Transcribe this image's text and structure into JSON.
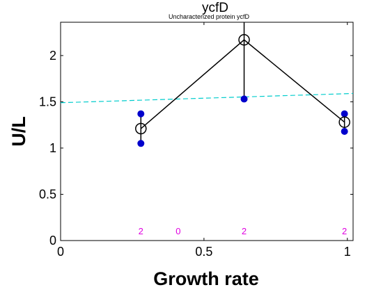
{
  "chart_data": {
    "type": "scatter",
    "title": "ycfD",
    "subtitle": "Uncharacterized protein ycfD",
    "xlabel": "Growth rate",
    "ylabel": "U/L",
    "xlim": [
      0,
      1.02
    ],
    "ylim": [
      0,
      2.36
    ],
    "xticks": [
      {
        "value": 0,
        "label": "0"
      },
      {
        "value": 0.5,
        "label": "0.5"
      },
      {
        "value": 1,
        "label": "1"
      }
    ],
    "yticks": [
      {
        "value": 0,
        "label": "0"
      },
      {
        "value": 0.5,
        "label": "0.5"
      },
      {
        "value": 1,
        "label": "1"
      },
      {
        "value": 1.5,
        "label": "1.5"
      },
      {
        "value": 2,
        "label": "2"
      }
    ],
    "grid": false,
    "mean_line": {
      "x": [
        0.28,
        0.64,
        0.99
      ],
      "y": [
        1.21,
        2.17,
        1.28
      ],
      "color": "#000000"
    },
    "error_bars": [
      {
        "x": 0.28,
        "low": 1.05,
        "high": 1.37
      },
      {
        "x": 0.64,
        "low": 1.53,
        "high": 2.36
      },
      {
        "x": 0.99,
        "low": 1.18,
        "high": 1.37
      }
    ],
    "replicates": {
      "x": [
        0.28,
        0.28,
        0.64,
        0.99,
        0.99
      ],
      "y": [
        1.37,
        1.05,
        1.53,
        1.37,
        1.18
      ],
      "color": "#0000cc"
    },
    "trend_line": {
      "x": [
        0,
        1.02
      ],
      "y": [
        1.49,
        1.59
      ],
      "color": "#00cccc"
    },
    "counts": [
      {
        "x": 0.28,
        "label": "2"
      },
      {
        "x": 0.41,
        "label": "0"
      },
      {
        "x": 0.64,
        "label": "2"
      },
      {
        "x": 0.99,
        "label": "2"
      }
    ]
  }
}
